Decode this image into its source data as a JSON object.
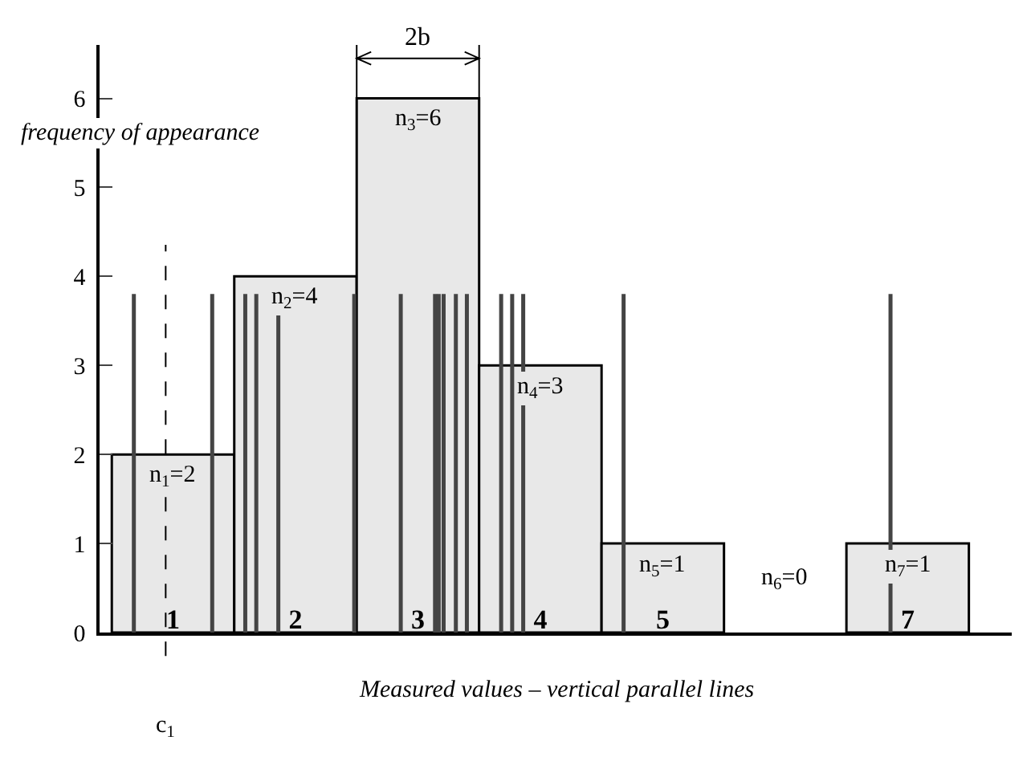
{
  "chart_data": {
    "type": "histogram",
    "xlabel": "Measured values – vertical parallel lines",
    "ylabel": "frequency of appearance",
    "bins": [
      0,
      1,
      2,
      3,
      4,
      5,
      6,
      7
    ],
    "values": [
      2,
      4,
      6,
      3,
      1,
      0,
      1
    ],
    "value_labels": [
      "n$_{1}$=2",
      "n$_{2}$=4",
      "n$_{3}$=6",
      "n$_{4}$=3",
      "n$_{5}$=1",
      "n$_{6}$=0",
      "n$_{7}$=1"
    ],
    "color": "#e8e8e8",
    "xlim": [
      -0.1,
      7.35
    ],
    "xticks": [
      {
        "value": 0.5,
        "label": "1"
      },
      {
        "value": 1.5,
        "label": "2"
      },
      {
        "value": 2.5,
        "label": "3"
      },
      {
        "value": 3.5,
        "label": "4"
      },
      {
        "value": 4.5,
        "label": "5"
      },
      {
        "value": 6.5,
        "label": "7"
      }
    ],
    "ylim": [
      0,
      6.6
    ],
    "yticks": [
      0,
      1,
      2,
      3,
      4,
      5,
      6
    ],
    "grid": false,
    "ref_lines": [
      {
        "axis": "x",
        "value": 0.44,
        "label": "c$_{1}$",
        "line_style": "dashed",
        "color": "#000000"
      },
      {
        "axis": "x",
        "value": 0.18,
        "color": "#444444"
      },
      {
        "axis": "x",
        "value": 0.82,
        "color": "#444444"
      },
      {
        "axis": "x",
        "value": 1.09,
        "color": "#444444"
      },
      {
        "axis": "x",
        "value": 1.18,
        "color": "#444444"
      },
      {
        "axis": "x",
        "value": 1.36,
        "color": "#444444"
      },
      {
        "axis": "x",
        "value": 1.98,
        "color": "#444444"
      },
      {
        "axis": "x",
        "value": 2.36,
        "color": "#444444"
      },
      {
        "axis": "x",
        "value": 2.64,
        "color": "#444444"
      },
      {
        "axis": "x",
        "value": 2.67,
        "color": "#444444"
      },
      {
        "axis": "x",
        "value": 2.71,
        "color": "#444444"
      },
      {
        "axis": "x",
        "value": 2.81,
        "color": "#444444"
      },
      {
        "axis": "x",
        "value": 2.9,
        "color": "#444444"
      },
      {
        "axis": "x",
        "value": 3.18,
        "color": "#444444"
      },
      {
        "axis": "x",
        "value": 3.27,
        "color": "#444444"
      },
      {
        "axis": "x",
        "value": 3.36,
        "color": "#444444"
      },
      {
        "axis": "x",
        "value": 4.18,
        "color": "#444444"
      },
      {
        "axis": "x",
        "value": 6.36,
        "color": "#444444"
      }
    ],
    "annotations": [
      "2b"
    ]
  }
}
